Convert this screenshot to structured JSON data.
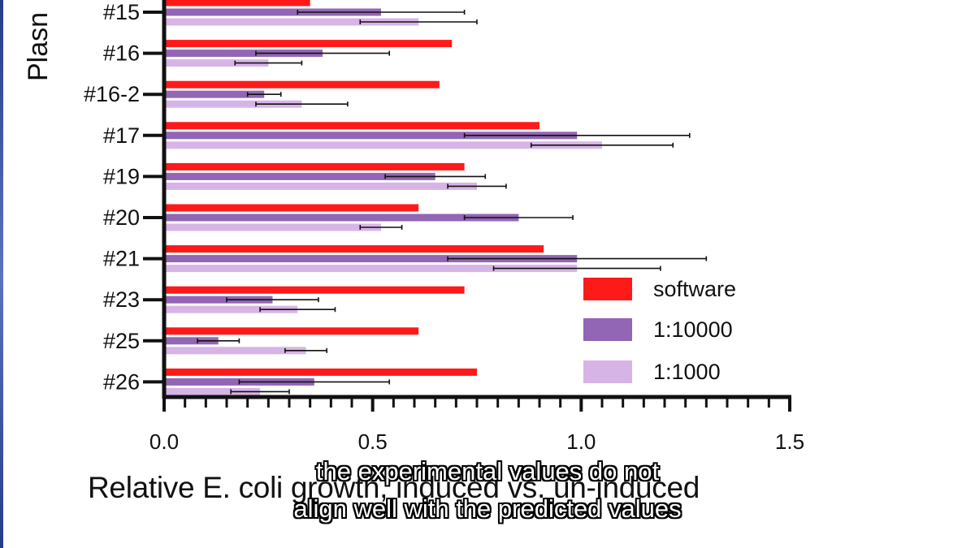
{
  "chart_data": {
    "type": "bar",
    "orientation": "horizontal",
    "ylabel": "Plasn",
    "xlabel": "Relative E. coli growth, induced vs. un-induced",
    "xlim": [
      0,
      1.5
    ],
    "xticks": [
      "0.0",
      "0.5",
      "1.0",
      "1.5"
    ],
    "categories": [
      "#15",
      "#16",
      "#16-2",
      "#17",
      "#19",
      "#20",
      "#21",
      "#23",
      "#25",
      "#26"
    ],
    "series": [
      {
        "name": "software",
        "color": "#ff1a1a",
        "values": [
          0.35,
          0.69,
          0.66,
          0.9,
          0.72,
          0.61,
          0.91,
          0.72,
          0.61,
          0.75
        ],
        "errors": null
      },
      {
        "name": "1:10000",
        "color": "#9266b4",
        "values": [
          0.52,
          0.38,
          0.24,
          0.99,
          0.65,
          0.85,
          0.99,
          0.26,
          0.13,
          0.36
        ],
        "errors": [
          0.2,
          0.16,
          0.04,
          0.27,
          0.12,
          0.13,
          0.31,
          0.11,
          0.05,
          0.18
        ]
      },
      {
        "name": "1:1000",
        "color": "#d7b4e6",
        "values": [
          0.61,
          0.25,
          0.33,
          1.05,
          0.75,
          0.52,
          0.99,
          0.32,
          0.34,
          0.23
        ],
        "errors": [
          0.14,
          0.08,
          0.11,
          0.17,
          0.07,
          0.05,
          0.2,
          0.09,
          0.05,
          0.07
        ]
      }
    ],
    "legend": {
      "placement": "bottom-right"
    }
  },
  "subtitles": [
    "the experimental values do not",
    "align well with the predicted values"
  ]
}
